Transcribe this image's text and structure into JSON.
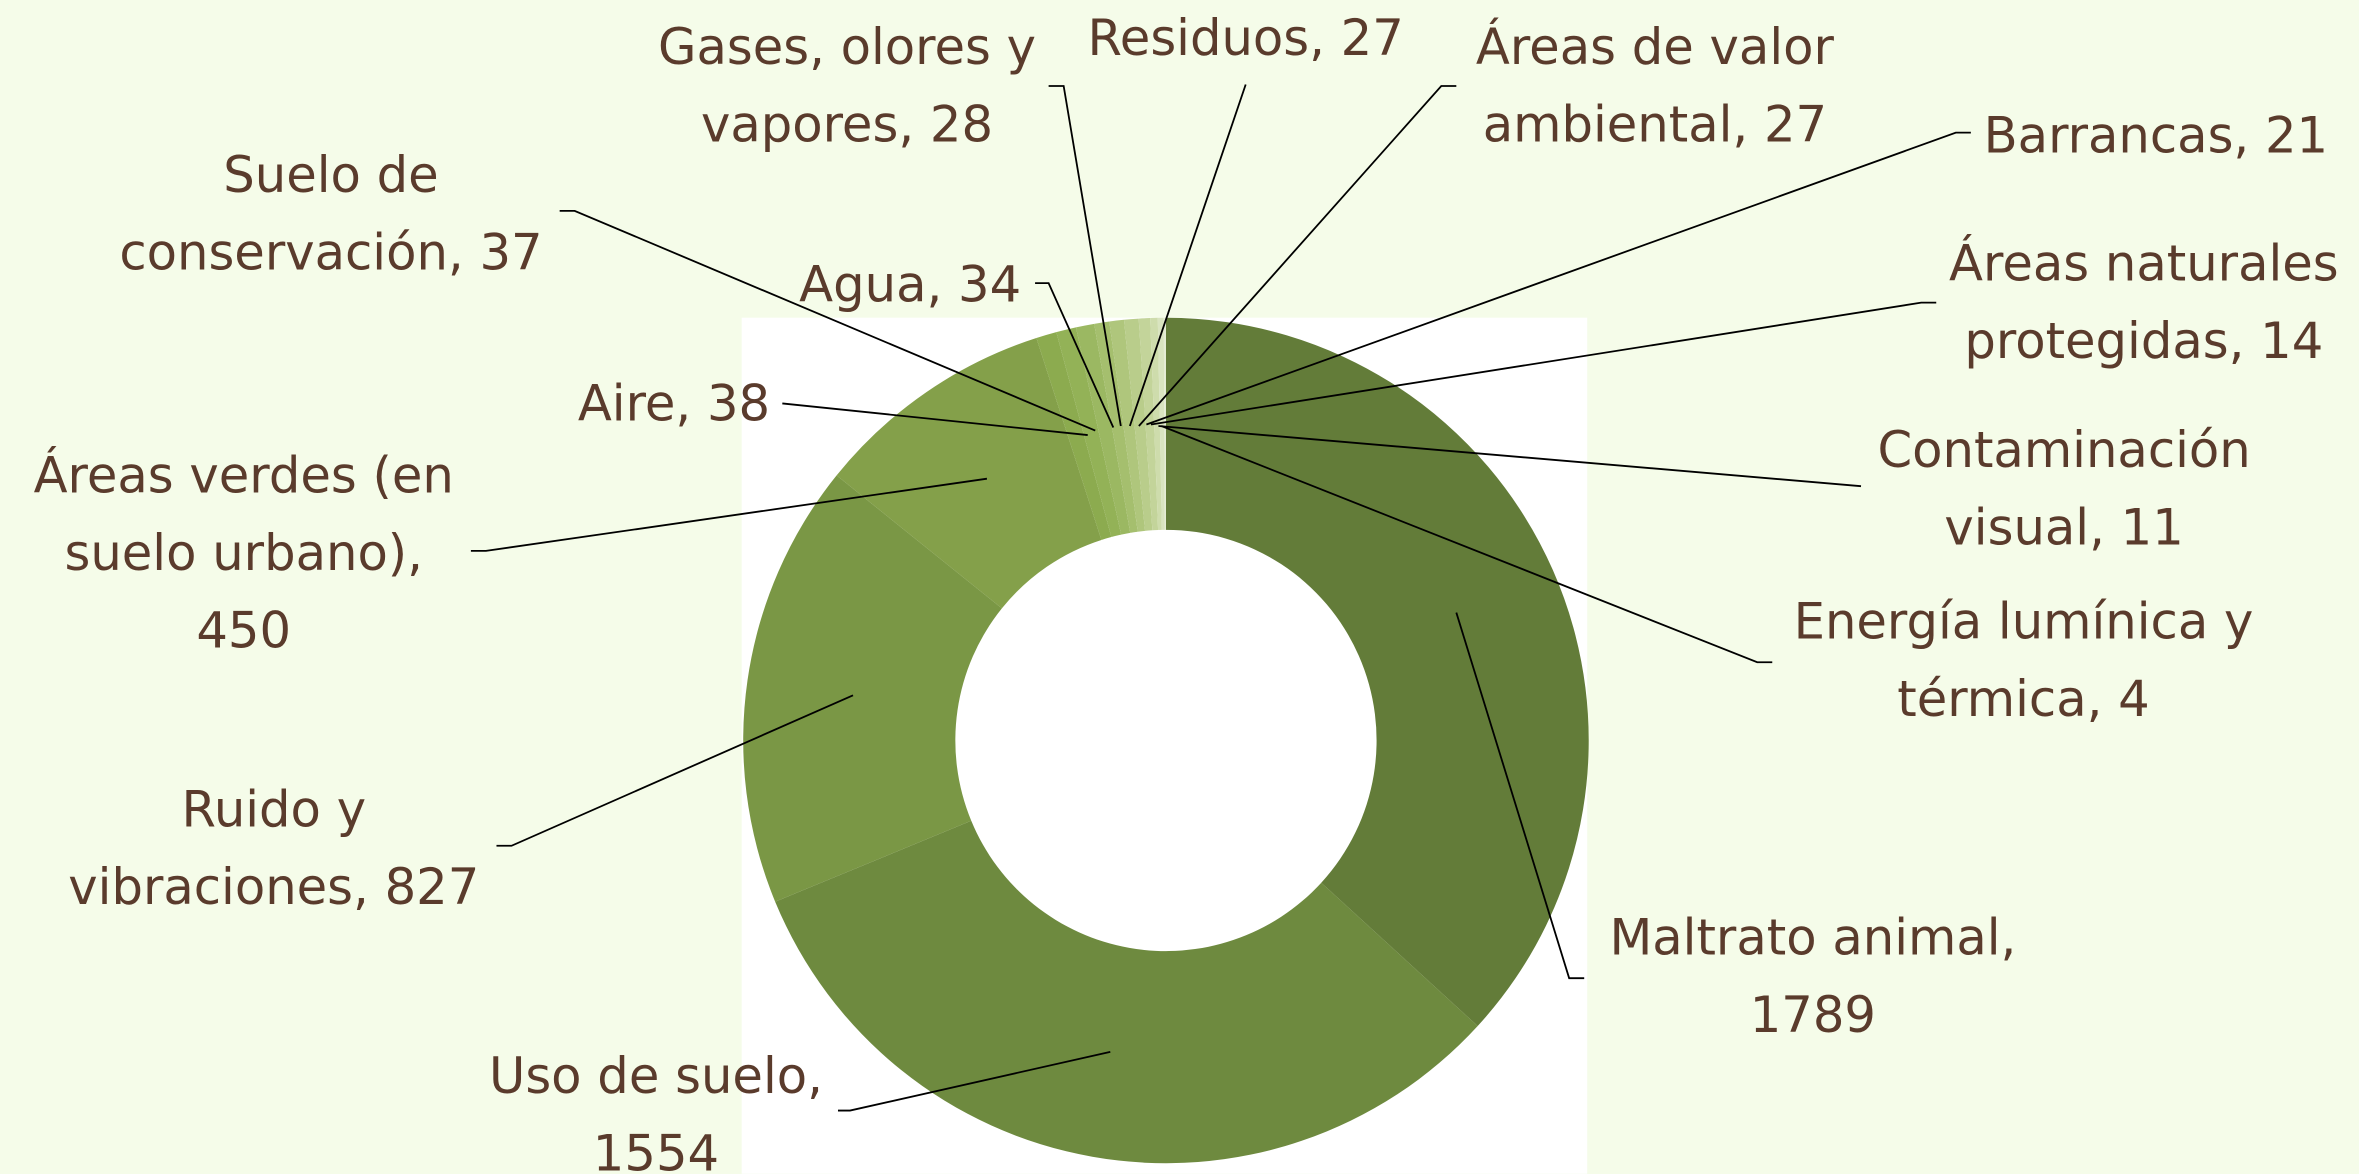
{
  "chart_data": {
    "type": "donut",
    "values": [
      1789,
      1554,
      827,
      450,
      38,
      37,
      34,
      28,
      27,
      27,
      21,
      14,
      11,
      4
    ],
    "value_labels": [
      "Maltrato animal, 1789",
      "Uso de suelo, 1554",
      "Ruido y vibraciones, 827",
      "Áreas verdes (en suelo urbano), 450",
      "Aire, 38",
      "Suelo de conservación, 37",
      "Agua, 34",
      "Gases, olores y vapores, 28",
      "Residuos, 27",
      "Áreas de valor ambiental, 27",
      "Barrancas, 21",
      "Áreas naturales protegidas, 14",
      "Contaminación visual, 11",
      "Energía lumínica y térmica, 4"
    ],
    "colors": [
      "#637c39",
      "#6e8a3f",
      "#7a9745",
      "#84a04a",
      "#8cab4f",
      "#93b257",
      "#9bb862",
      "#a5bf6e",
      "#afc67c",
      "#b9cd8b",
      "#c3d49a",
      "#cedcac",
      "#d9e4c0",
      "#e4ecd3"
    ]
  }
}
